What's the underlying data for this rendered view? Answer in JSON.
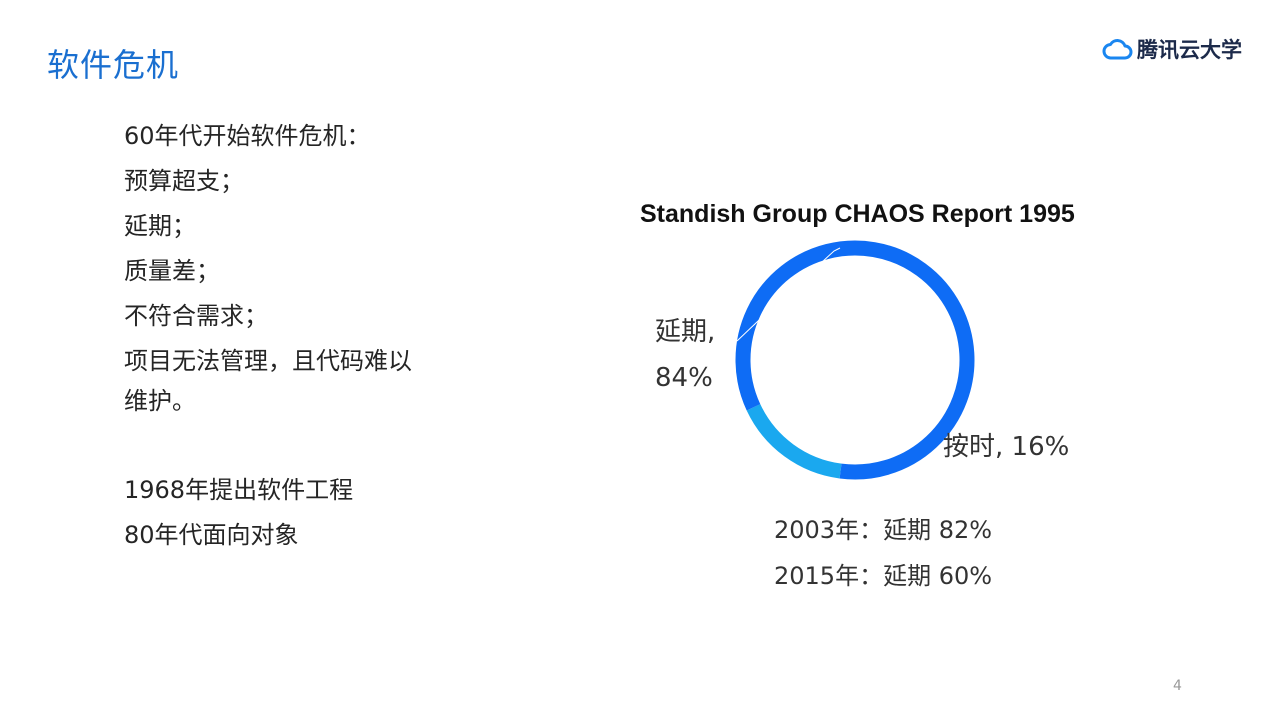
{
  "slide": {
    "title": "软件危机",
    "page_number": "4",
    "brand": {
      "name": "腾讯云大学",
      "icon": "cloud-icon",
      "icon_color": "#1a86f0"
    }
  },
  "content": {
    "bullets": [
      "60年代开始软件危机：",
      "预算超支；",
      "延期；",
      "质量差；",
      "不符合需求；",
      "项目无法管理，且代码难以维护。"
    ],
    "bullets2": [
      "1968年提出软件工程",
      "80年代面向对象"
    ]
  },
  "chart_data": {
    "type": "pie",
    "title": "Standish Group CHAOS Report 1995",
    "donut": true,
    "slices": [
      {
        "label": "延期",
        "value": 84,
        "display": "84%",
        "color": "#0e6cf5"
      },
      {
        "label": "按时",
        "value": 16,
        "display": "16%",
        "color": "#1aa8ef"
      }
    ],
    "labels": {
      "late_name": "延期,",
      "late_pct": "84%",
      "ontime": "按时, 16%"
    },
    "annotations": [
      "2003年：延期 82%",
      "2015年：延期 60%"
    ]
  }
}
